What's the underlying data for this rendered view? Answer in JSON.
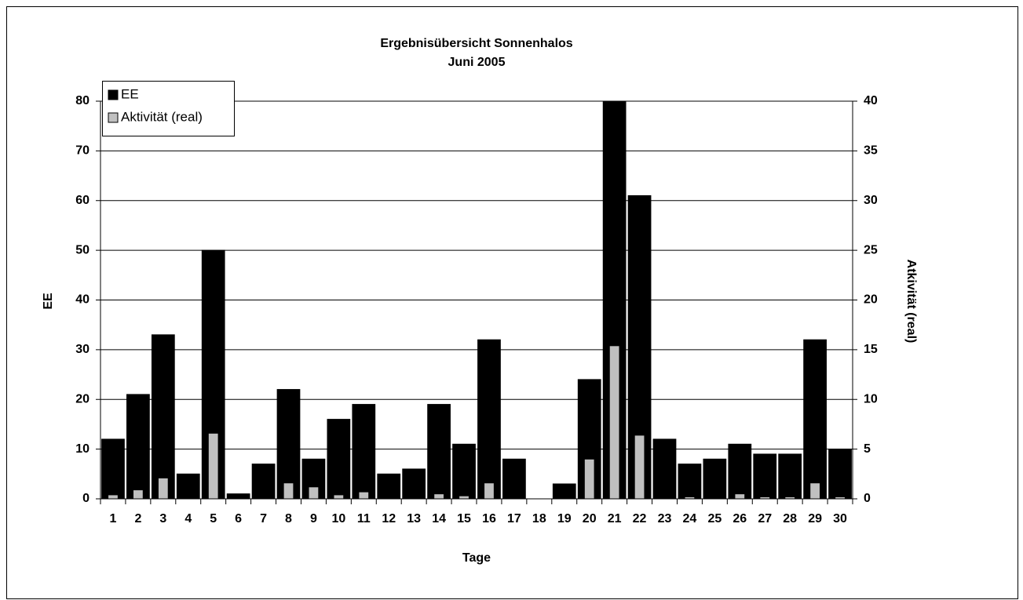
{
  "chart_data": {
    "type": "bar",
    "title": "Ergebnisübersicht Sonnenhalos",
    "subtitle": "Juni 2005",
    "x_label": "Tage",
    "y_label": "EE",
    "y2_label": "Atkivität (real)",
    "categories": [
      "1",
      "2",
      "3",
      "4",
      "5",
      "6",
      "7",
      "8",
      "9",
      "10",
      "11",
      "12",
      "13",
      "14",
      "15",
      "16",
      "17",
      "18",
      "19",
      "20",
      "21",
      "22",
      "23",
      "24",
      "25",
      "26",
      "27",
      "28",
      "29",
      "30"
    ],
    "series": [
      {
        "name": "EE",
        "color": "#000000",
        "values": [
          12,
          21,
          33,
          5,
          50,
          1,
          7,
          22,
          8,
          16,
          19,
          5,
          6,
          19,
          11,
          32,
          8,
          0,
          3,
          24,
          80,
          61,
          12,
          7,
          8,
          11,
          9,
          9,
          32,
          10
        ]
      },
      {
        "name": "Aktivität (real)",
        "color": "#c0c0c0",
        "axis": "y2",
        "values": [
          0.4,
          0.9,
          2.1,
          0,
          6.6,
          0,
          0,
          1.6,
          1.2,
          0.4,
          0.7,
          0,
          0,
          0.5,
          0.3,
          1.6,
          0,
          0,
          0,
          4.0,
          15.4,
          6.4,
          0,
          0.2,
          0,
          0.5,
          0.2,
          0.2,
          1.6,
          0.2
        ]
      }
    ],
    "ylim": [
      0,
      80
    ],
    "yticks": [
      0,
      10,
      20,
      30,
      40,
      50,
      60,
      70,
      80
    ],
    "y2lim": [
      0,
      40
    ],
    "y2ticks": [
      0,
      5,
      10,
      15,
      20,
      25,
      30,
      35,
      40
    ],
    "grid": true,
    "legend": "upper-left"
  }
}
